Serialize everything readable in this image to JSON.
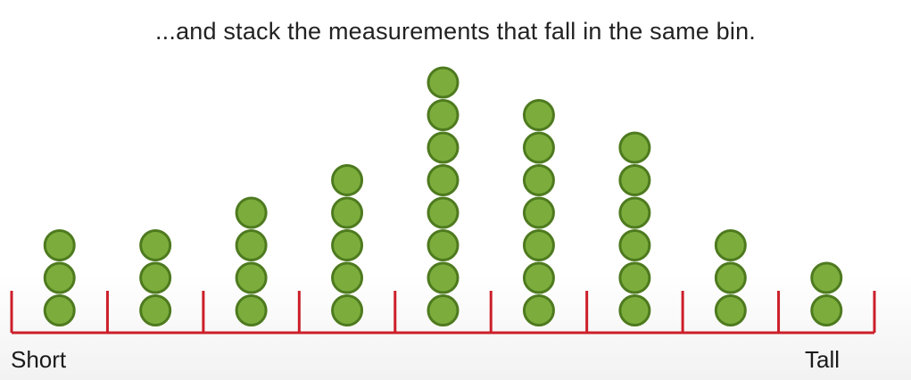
{
  "chart_data": {
    "type": "dot-histogram",
    "title": "...and stack the measurements that fall in the same bin.",
    "xlabel_left": "Short",
    "xlabel_right": "Tall",
    "bins": 9,
    "counts": [
      3,
      3,
      4,
      5,
      8,
      7,
      6,
      3,
      2
    ],
    "dot_color": "#7cad3c",
    "dot_outline": "#4e7a1f",
    "axis_color": "#cc1f2a"
  }
}
